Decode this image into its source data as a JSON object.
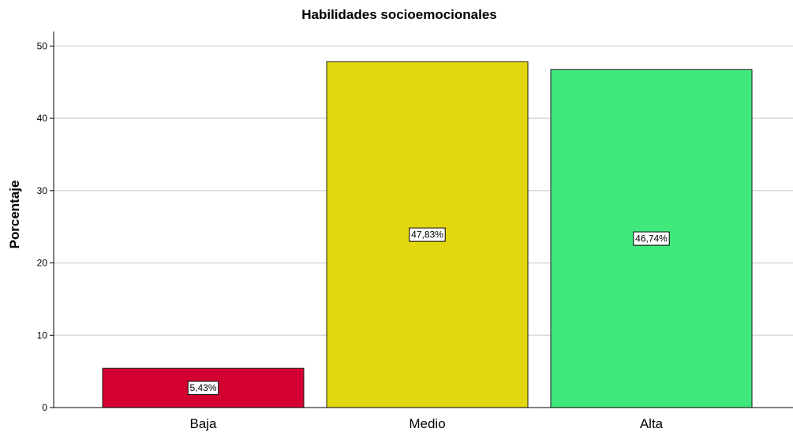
{
  "chart_data": {
    "type": "bar",
    "title": "Habilidades socioemocionales",
    "xlabel": "",
    "ylabel": "Porcentaje",
    "categories": [
      "Baja",
      "Medio",
      "Alta"
    ],
    "values": [
      5.43,
      47.83,
      46.74
    ],
    "data_labels": [
      "5,43%",
      "47,83%",
      "46,74%"
    ],
    "bar_colors": [
      "#d40031",
      "#e2d70e",
      "#40e87b"
    ],
    "ylim": [
      0,
      52
    ],
    "yticks": [
      0,
      10,
      20,
      30,
      40,
      50
    ],
    "grid": true,
    "legend": "none"
  }
}
